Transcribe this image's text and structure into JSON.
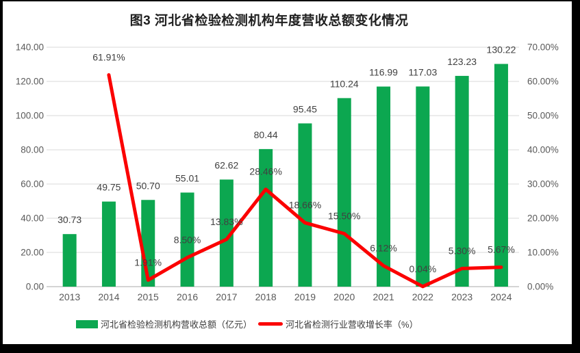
{
  "chart_title": "图3 河北省检验检测机构年度营收总额变化情况",
  "legend": {
    "bar_label": "河北省检验检测机构营收总额（亿元）",
    "line_label": "河北省检测行业营收增长率（%）"
  },
  "colors": {
    "frame": "#000000",
    "canvas": "#ffffff",
    "bar": "#0ca750",
    "line": "#fb0000",
    "grid": "#d9d9d9",
    "axis_line": "#c6c6c6",
    "tick_label": "#595959",
    "data_label": "#404040",
    "title": "#1f1f1f"
  },
  "chart_data": {
    "type": "combo-bar-line",
    "title": "图3 河北省检验检测机构年度营收总额变化情况",
    "categories": [
      "2013",
      "2014",
      "2015",
      "2016",
      "2017",
      "2018",
      "2019",
      "2020",
      "2021",
      "2022",
      "2023",
      "2024"
    ],
    "series": [
      {
        "name": "河北省检验检测机构营收总额（亿元）",
        "chart_type": "bar",
        "axis": "left",
        "color": "#0ca750",
        "values": [
          30.73,
          49.75,
          50.7,
          55.01,
          62.62,
          80.44,
          95.45,
          110.24,
          116.99,
          117.03,
          123.23,
          130.22
        ],
        "labels": [
          "30.73",
          "49.75",
          "50.70",
          "55.01",
          "62.62",
          "80.44",
          "95.45",
          "110.24",
          "116.99",
          "117.03",
          "123.23",
          "130.22"
        ]
      },
      {
        "name": "河北省检测行业营收增长率（%）",
        "chart_type": "line",
        "axis": "right",
        "color": "#fb0000",
        "values": [
          null,
          61.91,
          1.91,
          8.5,
          13.83,
          28.46,
          18.66,
          15.5,
          6.12,
          0.04,
          5.3,
          5.67
        ],
        "labels": [
          "",
          "61.91%",
          "1.91%",
          "8.50%",
          "13.83%",
          "28.46%",
          "18.66%",
          "15.50%",
          "6.12%",
          "0.04%",
          "5.30%",
          "5.67%"
        ]
      }
    ],
    "left_axis": {
      "min": 0,
      "max": 140,
      "step": 20,
      "tick_labels": [
        "0.00",
        "20.00",
        "40.00",
        "60.00",
        "80.00",
        "100.00",
        "120.00",
        "140.00"
      ]
    },
    "right_axis": {
      "min": 0,
      "max": 70,
      "step": 10,
      "tick_labels": [
        "0.00%",
        "10.00%",
        "20.00%",
        "30.00%",
        "40.00%",
        "50.00%",
        "60.00%",
        "70.00%"
      ]
    },
    "grid": true,
    "legend_position": "bottom"
  }
}
